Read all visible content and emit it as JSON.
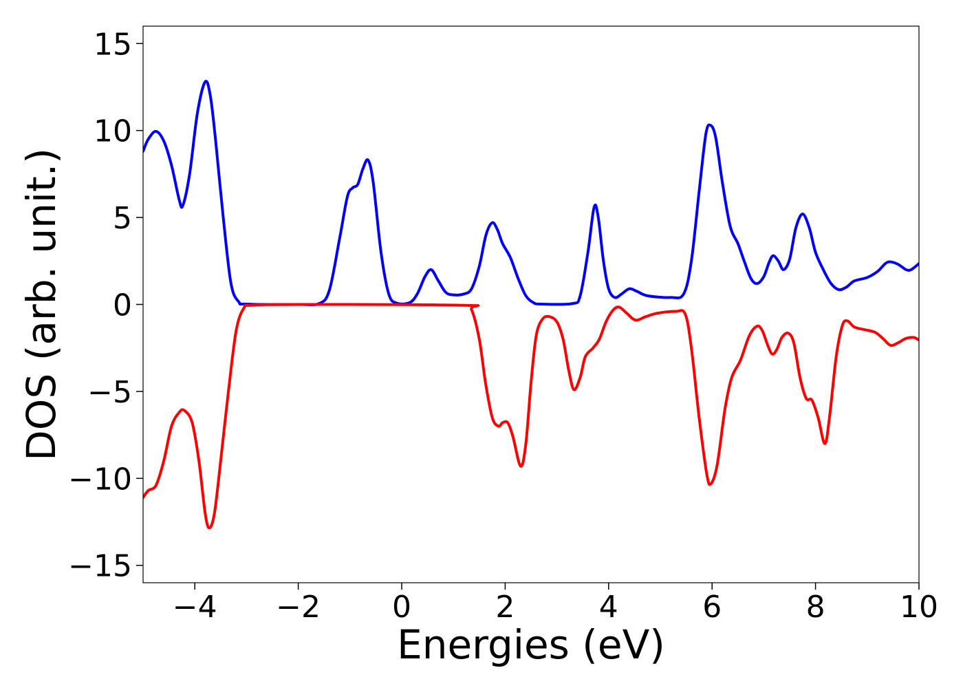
{
  "chart_data": {
    "type": "line",
    "title": "",
    "xlabel": "Energies (eV)",
    "ylabel": "DOS (arb. unit.)",
    "xlim": [
      -5,
      10
    ],
    "ylim": [
      -16,
      16
    ],
    "grid": false,
    "legend": "none",
    "xticks": [
      -4,
      -2,
      0,
      2,
      4,
      6,
      8,
      10
    ],
    "yticks": [
      -15,
      -10,
      -5,
      0,
      5,
      10,
      15
    ],
    "xtick_labels": [
      "−4",
      "−2",
      "0",
      "2",
      "4",
      "6",
      "8",
      "10"
    ],
    "ytick_labels": [
      "−15",
      "−10",
      "−5",
      "0",
      "5",
      "10",
      "15"
    ],
    "series": [
      {
        "color": "#0000ff",
        "points": [
          [
            -5.0,
            8.8
          ],
          [
            -4.9,
            9.5
          ],
          [
            -4.75,
            9.95
          ],
          [
            -4.6,
            9.4
          ],
          [
            -4.45,
            8.0
          ],
          [
            -4.3,
            6.0
          ],
          [
            -4.23,
            5.7
          ],
          [
            -4.1,
            7.5
          ],
          [
            -3.95,
            11.0
          ],
          [
            -3.8,
            12.8
          ],
          [
            -3.7,
            12.0
          ],
          [
            -3.6,
            9.5
          ],
          [
            -3.45,
            5.0
          ],
          [
            -3.3,
            1.2
          ],
          [
            -3.15,
            0.15
          ],
          [
            -3.0,
            0.02
          ],
          [
            -2.0,
            0.0
          ],
          [
            -1.6,
            0.05
          ],
          [
            -1.4,
            0.8
          ],
          [
            -1.2,
            3.8
          ],
          [
            -1.05,
            6.2
          ],
          [
            -0.95,
            6.7
          ],
          [
            -0.85,
            6.9
          ],
          [
            -0.75,
            7.8
          ],
          [
            -0.65,
            8.3
          ],
          [
            -0.55,
            7.0
          ],
          [
            -0.4,
            3.0
          ],
          [
            -0.25,
            0.6
          ],
          [
            -0.1,
            0.08
          ],
          [
            0.15,
            0.1
          ],
          [
            0.3,
            0.6
          ],
          [
            0.45,
            1.6
          ],
          [
            0.57,
            2.0
          ],
          [
            0.7,
            1.4
          ],
          [
            0.85,
            0.7
          ],
          [
            1.0,
            0.55
          ],
          [
            1.2,
            0.6
          ],
          [
            1.35,
            0.9
          ],
          [
            1.5,
            2.2
          ],
          [
            1.63,
            4.0
          ],
          [
            1.75,
            4.7
          ],
          [
            1.85,
            4.3
          ],
          [
            1.95,
            3.5
          ],
          [
            2.1,
            2.7
          ],
          [
            2.25,
            1.5
          ],
          [
            2.4,
            0.5
          ],
          [
            2.55,
            0.1
          ],
          [
            2.7,
            0.02
          ],
          [
            3.3,
            0.05
          ],
          [
            3.45,
            0.5
          ],
          [
            3.6,
            3.0
          ],
          [
            3.72,
            5.6
          ],
          [
            3.8,
            5.0
          ],
          [
            3.9,
            2.5
          ],
          [
            4.0,
            0.9
          ],
          [
            4.12,
            0.4
          ],
          [
            4.25,
            0.6
          ],
          [
            4.4,
            0.9
          ],
          [
            4.55,
            0.75
          ],
          [
            4.75,
            0.5
          ],
          [
            5.2,
            0.4
          ],
          [
            5.45,
            0.6
          ],
          [
            5.6,
            2.5
          ],
          [
            5.75,
            6.5
          ],
          [
            5.88,
            9.8
          ],
          [
            5.97,
            10.3
          ],
          [
            6.07,
            9.6
          ],
          [
            6.2,
            7.0
          ],
          [
            6.35,
            4.5
          ],
          [
            6.5,
            3.5
          ],
          [
            6.62,
            2.5
          ],
          [
            6.75,
            1.5
          ],
          [
            6.87,
            1.2
          ],
          [
            7.0,
            1.6
          ],
          [
            7.1,
            2.4
          ],
          [
            7.18,
            2.8
          ],
          [
            7.28,
            2.5
          ],
          [
            7.38,
            2.0
          ],
          [
            7.5,
            2.6
          ],
          [
            7.62,
            4.4
          ],
          [
            7.75,
            5.2
          ],
          [
            7.88,
            4.4
          ],
          [
            8.0,
            3.0
          ],
          [
            8.15,
            2.0
          ],
          [
            8.3,
            1.2
          ],
          [
            8.45,
            0.85
          ],
          [
            8.6,
            1.0
          ],
          [
            8.75,
            1.35
          ],
          [
            9.0,
            1.55
          ],
          [
            9.2,
            1.9
          ],
          [
            9.35,
            2.35
          ],
          [
            9.45,
            2.45
          ],
          [
            9.6,
            2.3
          ],
          [
            9.75,
            2.0
          ],
          [
            9.85,
            2.0
          ],
          [
            10.0,
            2.35
          ]
        ]
      },
      {
        "color": "#ff0000",
        "points": [
          [
            -5.0,
            -11.1
          ],
          [
            -4.9,
            -10.7
          ],
          [
            -4.75,
            -10.4
          ],
          [
            -4.6,
            -9.0
          ],
          [
            -4.45,
            -7.0
          ],
          [
            -4.3,
            -6.2
          ],
          [
            -4.2,
            -6.1
          ],
          [
            -4.05,
            -6.8
          ],
          [
            -3.92,
            -9.0
          ],
          [
            -3.8,
            -12.0
          ],
          [
            -3.72,
            -12.85
          ],
          [
            -3.62,
            -12.0
          ],
          [
            -3.5,
            -9.0
          ],
          [
            -3.35,
            -5.0
          ],
          [
            -3.2,
            -1.5
          ],
          [
            -3.05,
            -0.2
          ],
          [
            -2.9,
            -0.05
          ],
          [
            -2.0,
            0.0
          ],
          [
            1.2,
            -0.05
          ],
          [
            1.35,
            -0.3
          ],
          [
            1.5,
            -2.0
          ],
          [
            1.62,
            -4.5
          ],
          [
            1.75,
            -6.5
          ],
          [
            1.87,
            -7.0
          ],
          [
            1.95,
            -6.8
          ],
          [
            2.05,
            -6.8
          ],
          [
            2.15,
            -7.6
          ],
          [
            2.3,
            -9.3
          ],
          [
            2.4,
            -8.0
          ],
          [
            2.5,
            -4.5
          ],
          [
            2.6,
            -1.8
          ],
          [
            2.72,
            -0.85
          ],
          [
            2.85,
            -0.7
          ],
          [
            3.0,
            -1.0
          ],
          [
            3.12,
            -2.0
          ],
          [
            3.23,
            -3.8
          ],
          [
            3.33,
            -4.9
          ],
          [
            3.45,
            -4.2
          ],
          [
            3.55,
            -3.0
          ],
          [
            3.7,
            -2.5
          ],
          [
            3.82,
            -2.0
          ],
          [
            3.95,
            -1.0
          ],
          [
            4.08,
            -0.35
          ],
          [
            4.2,
            -0.15
          ],
          [
            4.35,
            -0.5
          ],
          [
            4.52,
            -0.9
          ],
          [
            4.72,
            -0.7
          ],
          [
            4.95,
            -0.5
          ],
          [
            5.3,
            -0.4
          ],
          [
            5.48,
            -0.55
          ],
          [
            5.6,
            -2.5
          ],
          [
            5.75,
            -6.5
          ],
          [
            5.9,
            -9.8
          ],
          [
            5.98,
            -10.3
          ],
          [
            6.1,
            -9.2
          ],
          [
            6.25,
            -6.0
          ],
          [
            6.38,
            -4.2
          ],
          [
            6.55,
            -3.2
          ],
          [
            6.72,
            -1.8
          ],
          [
            6.87,
            -1.25
          ],
          [
            6.97,
            -1.5
          ],
          [
            7.07,
            -2.3
          ],
          [
            7.16,
            -2.85
          ],
          [
            7.25,
            -2.6
          ],
          [
            7.35,
            -1.9
          ],
          [
            7.47,
            -1.65
          ],
          [
            7.58,
            -2.2
          ],
          [
            7.7,
            -4.2
          ],
          [
            7.82,
            -5.4
          ],
          [
            7.93,
            -5.5
          ],
          [
            8.05,
            -6.5
          ],
          [
            8.18,
            -8.0
          ],
          [
            8.27,
            -6.5
          ],
          [
            8.4,
            -3.0
          ],
          [
            8.52,
            -1.2
          ],
          [
            8.62,
            -0.95
          ],
          [
            8.75,
            -1.3
          ],
          [
            8.95,
            -1.45
          ],
          [
            9.15,
            -1.6
          ],
          [
            9.3,
            -1.95
          ],
          [
            9.45,
            -2.35
          ],
          [
            9.6,
            -2.2
          ],
          [
            9.75,
            -1.95
          ],
          [
            9.9,
            -1.9
          ],
          [
            10.0,
            -2.05
          ]
        ]
      }
    ]
  }
}
